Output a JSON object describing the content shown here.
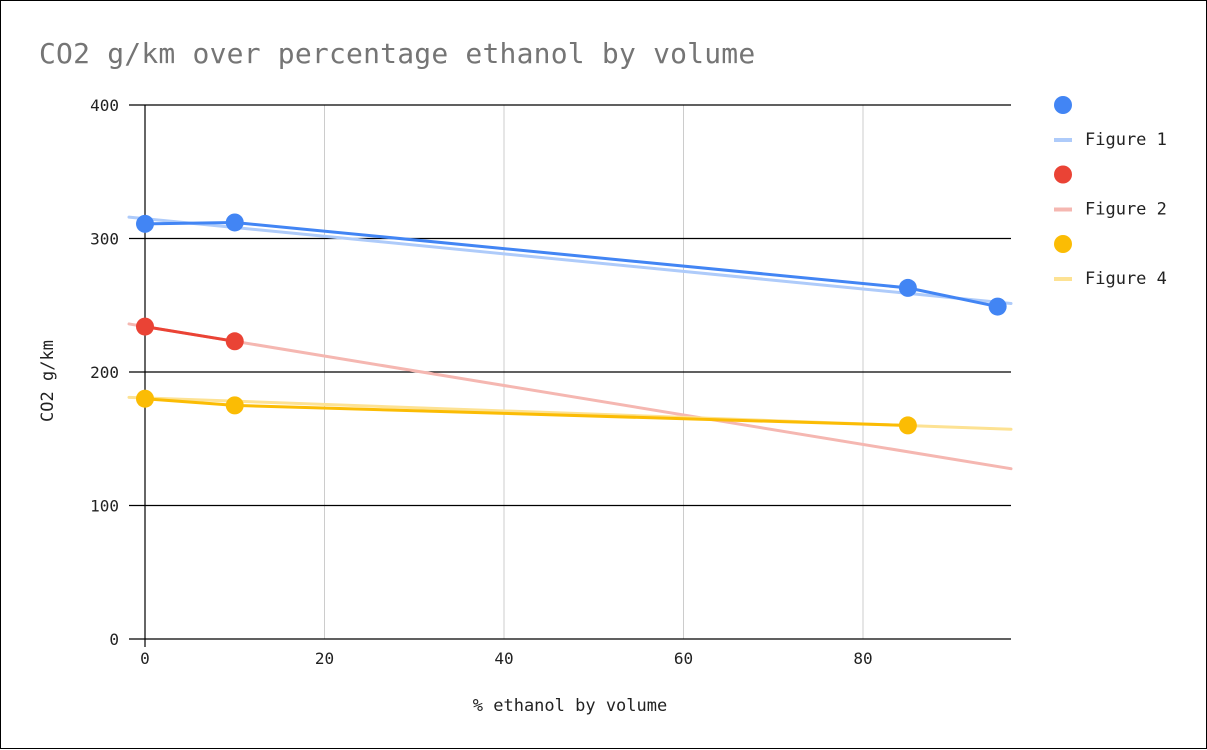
{
  "chart_data": {
    "type": "scatter",
    "title": "CO2 g/km over percentage ethanol by volume",
    "xlabel": "% ethanol by volume",
    "ylabel": "CO2 g/km",
    "xlim": [
      -2,
      97
    ],
    "ylim": [
      0,
      400
    ],
    "x_ticks": [
      "0",
      "20",
      "40",
      "60",
      "80"
    ],
    "y_ticks": [
      "0",
      "100",
      "200",
      "300",
      "400"
    ],
    "grid": true,
    "legend_position": "right",
    "series": [
      {
        "name": "",
        "trendline_label": "Figure 1",
        "color": "#4285F4",
        "trend_color": "#AECBFA",
        "connected": true,
        "points": [
          [
            0,
            311
          ],
          [
            10,
            312
          ],
          [
            85,
            263
          ],
          [
            95,
            249
          ]
        ],
        "trendline": [
          [
            -2,
            316
          ],
          [
            97,
            251
          ]
        ]
      },
      {
        "name": "",
        "trendline_label": "Figure 2",
        "color": "#EA4335",
        "trend_color": "#F5B7B1",
        "connected": true,
        "points": [
          [
            0,
            234
          ],
          [
            10,
            223
          ]
        ],
        "trendline": [
          [
            -2,
            236
          ],
          [
            97,
            127
          ]
        ]
      },
      {
        "name": "",
        "trendline_label": "Figure 4",
        "color": "#FBBC04",
        "trend_color": "#FDE293",
        "connected": true,
        "points": [
          [
            0,
            180
          ],
          [
            10,
            175
          ],
          [
            85,
            160
          ]
        ],
        "trendline": [
          [
            -2,
            181
          ],
          [
            97,
            157
          ]
        ]
      }
    ]
  }
}
